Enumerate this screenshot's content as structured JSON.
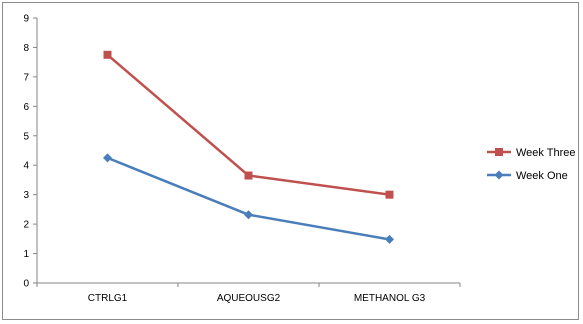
{
  "chart_data": {
    "type": "line",
    "title": "",
    "xlabel": "",
    "ylabel": "",
    "categories": [
      "CTRLG1",
      "AQUEOUSG2",
      "METHANOL G3"
    ],
    "ylim": [
      0,
      9
    ],
    "yticks": [
      0,
      1,
      2,
      3,
      4,
      5,
      6,
      7,
      8,
      9
    ],
    "grid": false,
    "legend_position": "right",
    "series": [
      {
        "name": "Week Three",
        "values": [
          7.75,
          3.65,
          3.0
        ],
        "color": "#c0504d",
        "marker": "square"
      },
      {
        "name": "Week One",
        "values": [
          4.25,
          2.32,
          1.48
        ],
        "color": "#4a7ebb",
        "marker": "diamond"
      }
    ]
  }
}
